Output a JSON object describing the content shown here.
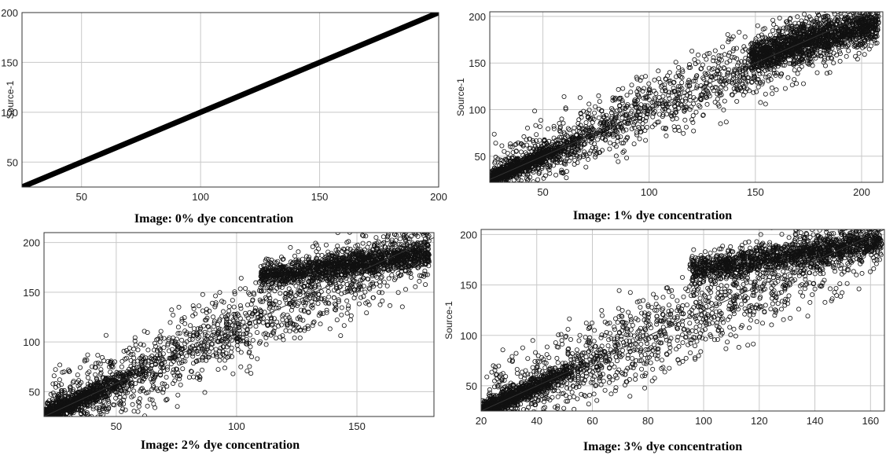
{
  "chart_data": [
    {
      "type": "scatter",
      "caption": "Image: 0% dye concentration",
      "ylabel": "Source-1",
      "xlim": [
        25,
        200
      ],
      "ylim": [
        25,
        200
      ],
      "xticks": [
        50,
        100,
        150,
        200
      ],
      "yticks": [
        50,
        100,
        150,
        200
      ],
      "grid": true,
      "pattern": "identity",
      "cluster": null,
      "reference_line": [
        [
          25,
          25
        ],
        [
          200,
          200
        ]
      ]
    },
    {
      "type": "scatter",
      "caption": "Image: 1% dye concentration",
      "ylabel": "Source-1",
      "xlim": [
        25,
        210
      ],
      "ylim": [
        22,
        205
      ],
      "xticks": [
        50,
        100,
        150,
        200
      ],
      "yticks": [
        50,
        100,
        150,
        200
      ],
      "grid": true,
      "pattern": "scatter",
      "spread": 38,
      "cluster": {
        "x": [
          148,
          208
        ],
        "y": [
          148,
          200
        ]
      },
      "reference_line": [
        [
          25,
          25
        ],
        [
          210,
          210
        ]
      ]
    },
    {
      "type": "scatter",
      "caption": "Image: 2% dye concentration",
      "ylabel": "",
      "xlim": [
        20,
        182
      ],
      "ylim": [
        25,
        210
      ],
      "xticks": [
        50,
        100,
        150
      ],
      "yticks": [
        50,
        100,
        150,
        200
      ],
      "grid": true,
      "pattern": "scatter",
      "spread": 42,
      "cluster": {
        "x": [
          110,
          180
        ],
        "y": [
          160,
          195
        ]
      },
      "reference_line": [
        [
          20,
          25
        ],
        [
          182,
          205
        ]
      ]
    },
    {
      "type": "scatter",
      "caption": "Image: 3% dye concentration",
      "ylabel": "Source-1",
      "xlim": [
        20,
        165
      ],
      "ylim": [
        25,
        205
      ],
      "xticks": [
        20,
        40,
        60,
        80,
        100,
        120,
        140,
        160
      ],
      "yticks": [
        50,
        100,
        150,
        200
      ],
      "grid": true,
      "pattern": "scatter",
      "spread": 45,
      "cluster": {
        "x": [
          95,
          164
        ],
        "y": [
          160,
          198
        ]
      },
      "reference_line": [
        [
          20,
          25
        ],
        [
          165,
          205
        ]
      ]
    }
  ]
}
